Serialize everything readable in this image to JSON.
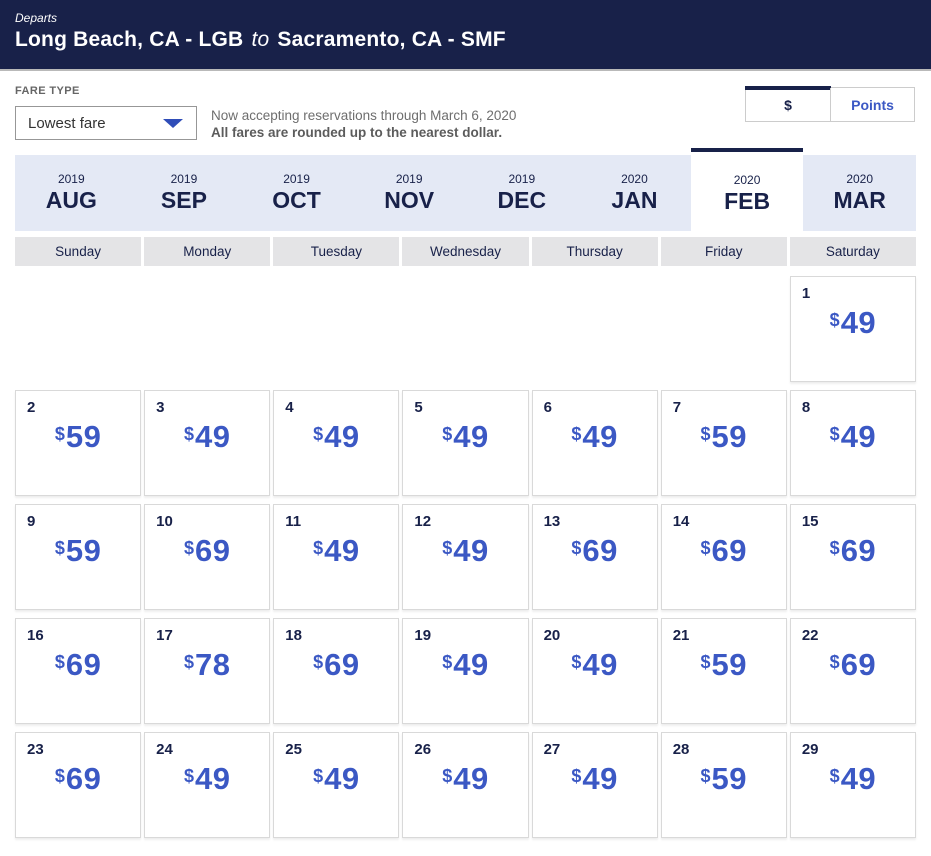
{
  "header": {
    "eyebrow": "Departs",
    "origin": "Long Beach, CA - LGB",
    "connector": "to",
    "destination": "Sacramento, CA - SMF"
  },
  "fare_type": {
    "label": "FARE TYPE",
    "selected_value": "Lowest fare"
  },
  "notice": {
    "line1": "Now accepting reservations through March 6, 2020",
    "line2": "All fares are rounded up to the nearest dollar."
  },
  "currency_toggle": {
    "dollar_label": "$",
    "points_label": "Points",
    "selected": "$"
  },
  "month_tabs": [
    {
      "year": "2019",
      "month": "AUG",
      "selected": false
    },
    {
      "year": "2019",
      "month": "SEP",
      "selected": false
    },
    {
      "year": "2019",
      "month": "OCT",
      "selected": false
    },
    {
      "year": "2019",
      "month": "NOV",
      "selected": false
    },
    {
      "year": "2019",
      "month": "DEC",
      "selected": false
    },
    {
      "year": "2020",
      "month": "JAN",
      "selected": false
    },
    {
      "year": "2020",
      "month": "FEB",
      "selected": true
    },
    {
      "year": "2020",
      "month": "MAR",
      "selected": false
    }
  ],
  "day_headers": [
    "Sunday",
    "Monday",
    "Tuesday",
    "Wednesday",
    "Thursday",
    "Friday",
    "Saturday"
  ],
  "calendar": {
    "currency_symbol": "$",
    "weeks": [
      [
        null,
        null,
        null,
        null,
        null,
        null,
        {
          "date": "1",
          "price": "49"
        }
      ],
      [
        {
          "date": "2",
          "price": "59"
        },
        {
          "date": "3",
          "price": "49"
        },
        {
          "date": "4",
          "price": "49"
        },
        {
          "date": "5",
          "price": "49"
        },
        {
          "date": "6",
          "price": "49"
        },
        {
          "date": "7",
          "price": "59"
        },
        {
          "date": "8",
          "price": "49"
        }
      ],
      [
        {
          "date": "9",
          "price": "59"
        },
        {
          "date": "10",
          "price": "69"
        },
        {
          "date": "11",
          "price": "49"
        },
        {
          "date": "12",
          "price": "49"
        },
        {
          "date": "13",
          "price": "69"
        },
        {
          "date": "14",
          "price": "69"
        },
        {
          "date": "15",
          "price": "69"
        }
      ],
      [
        {
          "date": "16",
          "price": "69"
        },
        {
          "date": "17",
          "price": "78"
        },
        {
          "date": "18",
          "price": "69"
        },
        {
          "date": "19",
          "price": "49"
        },
        {
          "date": "20",
          "price": "49"
        },
        {
          "date": "21",
          "price": "59"
        },
        {
          "date": "22",
          "price": "69"
        }
      ],
      [
        {
          "date": "23",
          "price": "69"
        },
        {
          "date": "24",
          "price": "49"
        },
        {
          "date": "25",
          "price": "49"
        },
        {
          "date": "26",
          "price": "49"
        },
        {
          "date": "27",
          "price": "49"
        },
        {
          "date": "28",
          "price": "59"
        },
        {
          "date": "29",
          "price": "49"
        }
      ]
    ]
  },
  "colors": {
    "header_navy": "#182149",
    "tab_lavender": "#e4e9f5",
    "day_header_gray": "#e4e4e6",
    "price_blue": "#3b58c4",
    "cell_border": "#d9d9d9"
  }
}
